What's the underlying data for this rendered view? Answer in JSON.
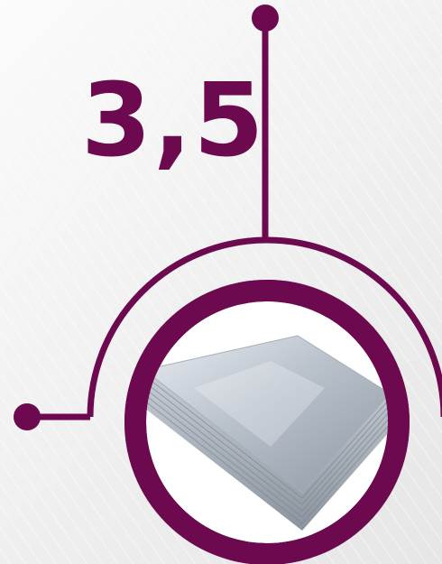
{
  "thickness_value": "3,5",
  "colors": {
    "accent": "#6d0a4f",
    "background": "#f0f0f0"
  },
  "product_image": "stack-of-galvanized-steel-sheets"
}
